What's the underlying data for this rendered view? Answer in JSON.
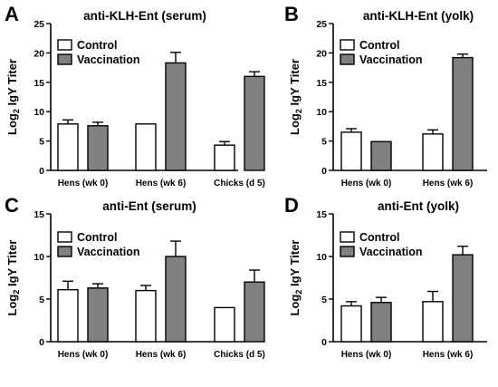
{
  "colors": {
    "control": "#ffffff",
    "vaccination": "#808080",
    "stroke": "#000000"
  },
  "chart_data": [
    {
      "panel": "A",
      "type": "bar",
      "title": "anti-KLH-Ent (serum)",
      "ylabel": "Log2 IgY Titer",
      "ylabel_main": "Log",
      "ylabel_sub": "2",
      "ylabel_rest": " IgY Titer",
      "ylim": [
        0,
        25
      ],
      "yticks": [
        0,
        5,
        10,
        15,
        20,
        25
      ],
      "categories": [
        "Hens (wk 0)",
        "Hens (wk 6)",
        "Chicks (d 5)"
      ],
      "series": [
        {
          "name": "Control",
          "values": [
            7.9,
            7.9,
            4.3
          ],
          "errors": [
            0.7,
            0,
            0.6
          ]
        },
        {
          "name": "Vaccination",
          "values": [
            7.6,
            18.3,
            16.0
          ],
          "errors": [
            0.6,
            1.8,
            0.8
          ]
        }
      ],
      "legend": [
        "Control",
        "Vaccination"
      ]
    },
    {
      "panel": "B",
      "type": "bar",
      "title": "anti-KLH-Ent (yolk)",
      "ylabel": "Log2 IgY Titer",
      "ylabel_main": "Log",
      "ylabel_sub": "2",
      "ylabel_rest": " IgY Titer",
      "ylim": [
        0,
        25
      ],
      "yticks": [
        0,
        5,
        10,
        15,
        20,
        25
      ],
      "categories": [
        "Hens (wk 0)",
        "Hens (wk 6)"
      ],
      "series": [
        {
          "name": "Control",
          "values": [
            6.5,
            6.2
          ],
          "errors": [
            0.6,
            0.7
          ]
        },
        {
          "name": "Vaccination",
          "values": [
            4.9,
            19.2
          ],
          "errors": [
            0,
            0.6
          ]
        }
      ],
      "legend": [
        "Control",
        "Vaccination"
      ]
    },
    {
      "panel": "C",
      "type": "bar",
      "title": "anti-Ent (serum)",
      "ylabel": "Log2 IgY Titer",
      "ylabel_main": "Log",
      "ylabel_sub": "2",
      "ylabel_rest": " IgY Titer",
      "ylim": [
        0,
        15
      ],
      "yticks": [
        0,
        5,
        10,
        15
      ],
      "categories": [
        "Hens (wk 0)",
        "Hens (wk 6)",
        "Chicks (d 5)"
      ],
      "series": [
        {
          "name": "Control",
          "values": [
            6.1,
            6.0,
            4.0
          ],
          "errors": [
            1.0,
            0.6,
            0
          ]
        },
        {
          "name": "Vaccination",
          "values": [
            6.3,
            10.0,
            7.0
          ],
          "errors": [
            0.5,
            1.8,
            1.4
          ]
        }
      ],
      "legend": [
        "Control",
        "Vaccination"
      ]
    },
    {
      "panel": "D",
      "type": "bar",
      "title": "anti-Ent (yolk)",
      "ylabel": "Log2 IgY Titer",
      "ylabel_main": "Log",
      "ylabel_sub": "2",
      "ylabel_rest": " IgY Titer",
      "ylim": [
        0,
        15
      ],
      "yticks": [
        0,
        5,
        10,
        15
      ],
      "categories": [
        "Hens (wk 0)",
        "Hens (wk 6)"
      ],
      "series": [
        {
          "name": "Control",
          "values": [
            4.2,
            4.7
          ],
          "errors": [
            0.5,
            1.2
          ]
        },
        {
          "name": "Vaccination",
          "values": [
            4.6,
            10.2
          ],
          "errors": [
            0.6,
            1.0
          ]
        }
      ],
      "legend": [
        "Control",
        "Vaccination"
      ]
    }
  ]
}
